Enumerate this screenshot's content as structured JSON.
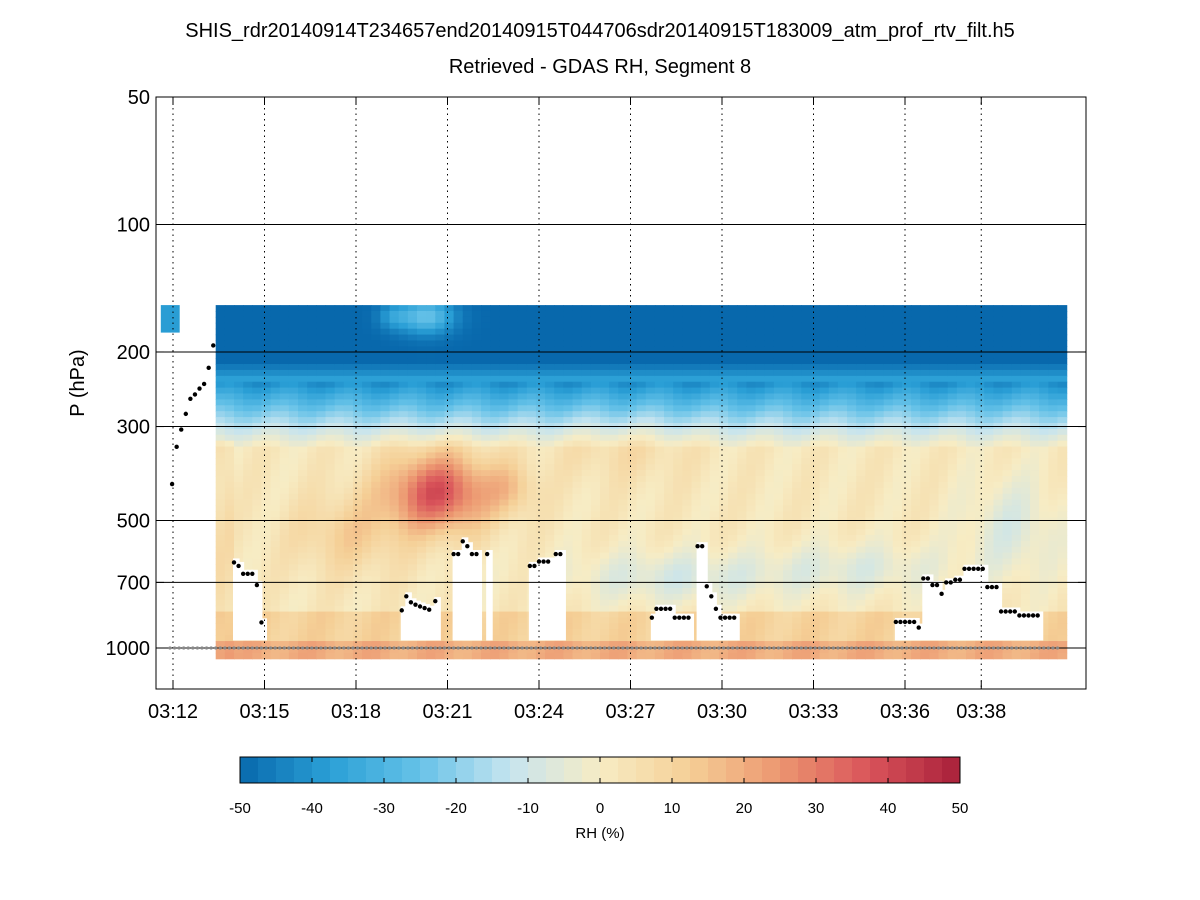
{
  "chart_data": {
    "type": "heatmap",
    "title": "SHIS_rdr20140914T234657end20140915T044706sdr20140915T183009_atm_prof_rtv_filt.h5",
    "subtitle": "Retrieved - GDAS RH, Segment 8",
    "ylabel": "P (hPa)",
    "y_scale": "log",
    "y_direction": "reversed",
    "ylim": [
      50,
      1100
    ],
    "y_ticks": [
      50,
      100,
      200,
      300,
      500,
      700,
      1000
    ],
    "y_tick_labels": [
      "50",
      "100",
      "200",
      "300",
      "500",
      "700",
      "1000"
    ],
    "xlim": [
      "03:11:40",
      "03:41:00"
    ],
    "x_tick_labels": [
      "03:12",
      "03:15",
      "03:18",
      "03:21",
      "03:24",
      "03:27",
      "03:30",
      "03:33",
      "03:36",
      "03:38"
    ],
    "x_tick_times_min": [
      12.0,
      15.0,
      18.0,
      21.0,
      24.0,
      27.0,
      30.0,
      33.0,
      36.0,
      38.5
    ],
    "grid": true,
    "colorbar": {
      "label": "RH (%)",
      "min": -50,
      "max": 50,
      "ticks": [
        -50,
        -40,
        -30,
        -20,
        -10,
        0,
        10,
        20,
        30,
        40,
        50
      ],
      "tick_labels": [
        "-50",
        "-40",
        "-30",
        "-20",
        "-10",
        "0",
        "10",
        "20",
        "30",
        "40",
        "50"
      ],
      "colors": [
        "#0868ac",
        "#2a9fd6",
        "#66c2e8",
        "#c6e4ef",
        "#f7ecc4",
        "#f5cf96",
        "#ec9670",
        "#d9535a",
        "#a8203a"
      ]
    },
    "field_top_hPa": 155,
    "cloud_markers": [
      {
        "t": 11.97,
        "p": 410
      },
      {
        "t": 12.12,
        "p": 335
      },
      {
        "t": 12.27,
        "p": 305
      },
      {
        "t": 12.42,
        "p": 280
      },
      {
        "t": 12.57,
        "p": 258
      },
      {
        "t": 12.72,
        "p": 252
      },
      {
        "t": 12.87,
        "p": 244
      },
      {
        "t": 13.02,
        "p": 238
      },
      {
        "t": 13.17,
        "p": 218
      },
      {
        "t": 13.32,
        "p": 193
      },
      {
        "t": 14.0,
        "p": 628
      },
      {
        "t": 14.15,
        "p": 640
      },
      {
        "t": 14.3,
        "p": 668
      },
      {
        "t": 14.45,
        "p": 668
      },
      {
        "t": 14.6,
        "p": 668
      },
      {
        "t": 14.75,
        "p": 710
      },
      {
        "t": 14.9,
        "p": 870
      },
      {
        "t": 19.5,
        "p": 815
      },
      {
        "t": 19.65,
        "p": 755
      },
      {
        "t": 19.8,
        "p": 780
      },
      {
        "t": 19.95,
        "p": 790
      },
      {
        "t": 20.1,
        "p": 798
      },
      {
        "t": 20.25,
        "p": 805
      },
      {
        "t": 20.4,
        "p": 812
      },
      {
        "t": 20.6,
        "p": 775
      },
      {
        "t": 21.2,
        "p": 600
      },
      {
        "t": 21.35,
        "p": 600
      },
      {
        "t": 21.5,
        "p": 560
      },
      {
        "t": 21.65,
        "p": 575
      },
      {
        "t": 21.8,
        "p": 600
      },
      {
        "t": 21.95,
        "p": 600
      },
      {
        "t": 22.3,
        "p": 600
      },
      {
        "t": 23.7,
        "p": 640
      },
      {
        "t": 23.85,
        "p": 640
      },
      {
        "t": 24.0,
        "p": 625
      },
      {
        "t": 24.15,
        "p": 625
      },
      {
        "t": 24.3,
        "p": 625
      },
      {
        "t": 24.55,
        "p": 600
      },
      {
        "t": 24.7,
        "p": 600
      },
      {
        "t": 27.7,
        "p": 848
      },
      {
        "t": 27.85,
        "p": 808
      },
      {
        "t": 28.0,
        "p": 808
      },
      {
        "t": 28.15,
        "p": 808
      },
      {
        "t": 28.3,
        "p": 808
      },
      {
        "t": 28.45,
        "p": 848
      },
      {
        "t": 28.6,
        "p": 848
      },
      {
        "t": 28.75,
        "p": 848
      },
      {
        "t": 28.9,
        "p": 848
      },
      {
        "t": 29.2,
        "p": 575
      },
      {
        "t": 29.35,
        "p": 575
      },
      {
        "t": 29.5,
        "p": 715
      },
      {
        "t": 29.65,
        "p": 755
      },
      {
        "t": 29.8,
        "p": 808
      },
      {
        "t": 29.95,
        "p": 848
      },
      {
        "t": 30.1,
        "p": 848
      },
      {
        "t": 30.25,
        "p": 848
      },
      {
        "t": 30.4,
        "p": 848
      },
      {
        "t": 35.7,
        "p": 868
      },
      {
        "t": 35.85,
        "p": 868
      },
      {
        "t": 36.0,
        "p": 868
      },
      {
        "t": 36.15,
        "p": 868
      },
      {
        "t": 36.3,
        "p": 868
      },
      {
        "t": 36.45,
        "p": 895
      },
      {
        "t": 36.6,
        "p": 685
      },
      {
        "t": 36.75,
        "p": 685
      },
      {
        "t": 36.9,
        "p": 710
      },
      {
        "t": 37.05,
        "p": 710
      },
      {
        "t": 37.2,
        "p": 745
      },
      {
        "t": 37.35,
        "p": 700
      },
      {
        "t": 37.5,
        "p": 700
      },
      {
        "t": 37.65,
        "p": 690
      },
      {
        "t": 37.8,
        "p": 690
      },
      {
        "t": 37.95,
        "p": 650
      },
      {
        "t": 38.1,
        "p": 650
      },
      {
        "t": 38.25,
        "p": 650
      },
      {
        "t": 38.4,
        "p": 650
      },
      {
        "t": 38.55,
        "p": 650
      },
      {
        "t": 38.7,
        "p": 718
      },
      {
        "t": 38.85,
        "p": 718
      },
      {
        "t": 39.0,
        "p": 718
      },
      {
        "t": 39.15,
        "p": 820
      },
      {
        "t": 39.3,
        "p": 820
      },
      {
        "t": 39.45,
        "p": 820
      },
      {
        "t": 39.6,
        "p": 820
      },
      {
        "t": 39.75,
        "p": 838
      },
      {
        "t": 39.9,
        "p": 838
      },
      {
        "t": 40.05,
        "p": 838
      },
      {
        "t": 40.2,
        "p": 838
      },
      {
        "t": 40.35,
        "p": 838
      }
    ],
    "surface_marker_p_hPa": 1000
  }
}
